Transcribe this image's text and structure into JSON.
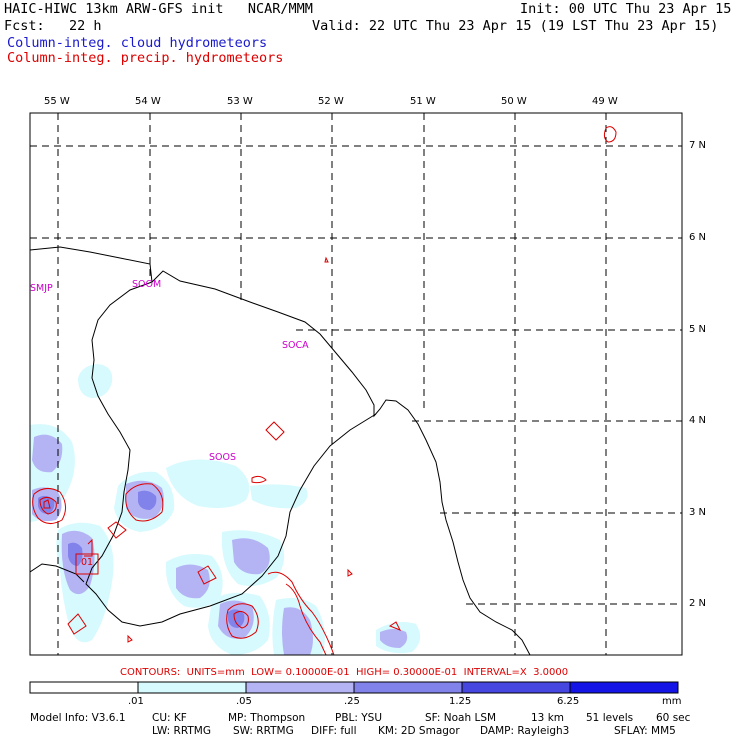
{
  "header": {
    "model_line": "HAIC-HIWC 13km ARW-GFS init   NCAR/MMM",
    "init_line": "Init: 00 UTC Thu 23 Apr 15",
    "fcst_line": "Fcst:   22 h",
    "valid_line": "Valid: 22 UTC Thu 23 Apr 15 (19 LST Thu 23 Apr 15)",
    "field_cloud": "Column-integ. cloud hydrometeors",
    "field_precip": "Column-integ. precip. hydrometeors"
  },
  "axes": {
    "lon_labels": [
      "55 W",
      "54 W",
      "53 W",
      "52 W",
      "51 W",
      "50 W",
      "49 W"
    ],
    "lat_labels": [
      "7 N",
      "6 N",
      "5 N",
      "4 N",
      "3 N",
      "2 N"
    ]
  },
  "stations": [
    "SMJP",
    "SOOM",
    "SOCA",
    "SOOS",
    "01"
  ],
  "contours_line": "CONTOURS:  UNITS=mm  LOW= 0.10000E-01  HIGH= 0.30000E-01  INTERVAL=X  3.0000",
  "colorbar": {
    "labels": [
      ".01",
      ".05",
      ".25",
      "1.25",
      "6.25"
    ],
    "units": "mm",
    "colors": [
      "#ffffff",
      "#d6fafe",
      "#b4b4f5",
      "#8282eb",
      "#4646e1",
      "#1414e6"
    ]
  },
  "footer": {
    "line1": [
      "Model Info: V3.6.1",
      "CU: KF",
      "MP: Thompson",
      "PBL: YSU",
      "SF: Noah LSM",
      "13 km",
      "51 levels",
      "60 sec"
    ],
    "line2": [
      "LW: RRTMG",
      "SW: RRTMG",
      "DIFF: full",
      "KM: 2D Smagor",
      "DAMP: Rayleigh3",
      "SFLAY: MM5"
    ]
  },
  "colors": {
    "cloud_text": "#1a1acc",
    "precip_text": "#dd0000",
    "station_text": "#cc00cc"
  }
}
